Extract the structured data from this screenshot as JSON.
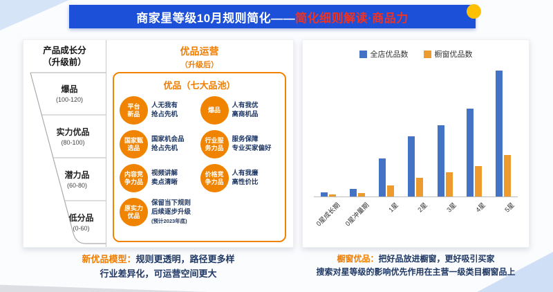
{
  "colors": {
    "banner_blue": "#1d50d8",
    "title_red": "#f03322",
    "accent_orange": "#ef7d00",
    "navy_text": "#1f3864",
    "bar_blue": "#4472c4",
    "bar_orange": "#ed9a2e",
    "yellow_dot": "#ffc000"
  },
  "header": {
    "title_white": "商家星等级10月规则简化——",
    "title_red": "简化细则解读·商品力"
  },
  "left_panel": {
    "growth": {
      "title": "产品成长分\n（升级前）",
      "tiers": [
        {
          "name": "爆品",
          "range": "(100-120)"
        },
        {
          "name": "实力优品",
          "range": "(80-100)"
        },
        {
          "name": "潜力品",
          "range": "(60-80)"
        },
        {
          "name": "低分品",
          "range": "(0-60)"
        }
      ]
    },
    "operation": {
      "title": "优品运营",
      "subtitle": "（升级后）",
      "pool_title": "优品（七大品池）",
      "items": [
        {
          "circle": "平台\n新品",
          "desc": "人无我有\n抢占先机"
        },
        {
          "circle": "爆品",
          "desc": "人有我优\n高商机品"
        },
        {
          "circle": "国家甄\n选品",
          "desc": "国家机会品\n抢占先机"
        },
        {
          "circle": "行业服\n务力品",
          "desc": "服务保障\n专业买家偏好"
        },
        {
          "circle": "内容竞\n争力品",
          "desc": "视频讲解\n卖点清晰"
        },
        {
          "circle": "价格竞\n争力品",
          "desc": "人有我廉\n高性价比"
        },
        {
          "circle": "原实力\n优品",
          "desc": "保留当下规则\n后续逐步升级",
          "note": "(预计2023年底)"
        }
      ]
    },
    "caption": {
      "lead": "新优品模型：",
      "line1": "规则更透明，路径更多样",
      "line2": "行业差异化，可运营空间更大"
    }
  },
  "right_panel": {
    "caption": {
      "lead": "橱窗优品：",
      "line1": "把好品放进橱窗，更好吸引买家",
      "line2": "搜索对星等级的影响优先作用在主营一级类目橱窗品上"
    }
  },
  "chart_data": {
    "type": "bar",
    "title": "",
    "xlabel": "",
    "ylabel": "",
    "categories": [
      "0星成长期",
      "0星冲量期",
      "1星",
      "2星",
      "3星",
      "4星",
      "5星"
    ],
    "series": [
      {
        "name": "全店优品数",
        "color": "#4472c4",
        "values": [
          4,
          7,
          35,
          55,
          65,
          80,
          115
        ]
      },
      {
        "name": "橱窗优品数",
        "color": "#ed9a2e",
        "values": [
          2,
          3,
          10,
          17,
          22,
          28,
          38
        ]
      }
    ],
    "ylim": [
      0,
      120
    ],
    "grid": false,
    "legend_position": "top"
  }
}
